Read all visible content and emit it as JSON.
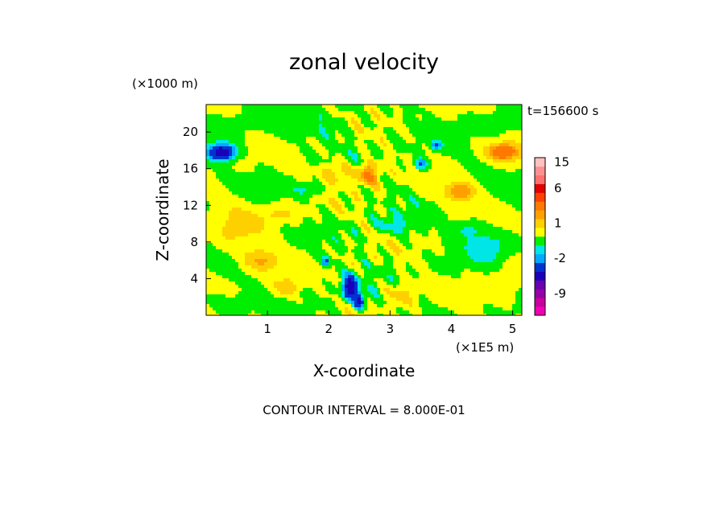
{
  "chart_data": {
    "type": "heatmap",
    "title": "zonal velocity",
    "xlabel": "X-coordinate",
    "ylabel": "Z-coordinate",
    "x_unit": "(×1E5 m)",
    "y_unit": "(×1000 m)",
    "time_label": "t=156600 s",
    "contour_note": "CONTOUR INTERVAL = 8.000E-01",
    "xlim": [
      0,
      5.15
    ],
    "ylim": [
      0,
      23
    ],
    "x_ticks": [
      "1",
      "2",
      "3",
      "4",
      "5"
    ],
    "x_tick_values": [
      1,
      2,
      3,
      4,
      5
    ],
    "y_ticks": [
      "4",
      "8",
      "12",
      "16",
      "20"
    ],
    "y_tick_values": [
      4,
      8,
      12,
      16,
      20
    ],
    "colorbar": {
      "labels": [
        "15",
        "6",
        "1",
        "-2",
        "-9"
      ],
      "label_values": [
        15,
        6,
        1,
        -2,
        -9
      ],
      "bands": [
        {
          "min": -15,
          "max": -12,
          "color": "#f000b4"
        },
        {
          "min": -12,
          "max": -10,
          "color": "#c8009c"
        },
        {
          "min": -10,
          "max": -8,
          "color": "#9600a8"
        },
        {
          "min": -8,
          "max": -6,
          "color": "#6a00b0"
        },
        {
          "min": -6,
          "max": -4,
          "color": "#1a00b8"
        },
        {
          "min": -4,
          "max": -2.4,
          "color": "#0033d0"
        },
        {
          "min": -2.4,
          "max": -1.6,
          "color": "#00aaff"
        },
        {
          "min": -1.6,
          "max": -0.8,
          "color": "#00e5e5"
        },
        {
          "min": -0.8,
          "max": 0,
          "color": "#00ee00"
        },
        {
          "min": 0,
          "max": 0.8,
          "color": "#ffff00"
        },
        {
          "min": 0.8,
          "max": 1.6,
          "color": "#ffd000"
        },
        {
          "min": 1.6,
          "max": 2.4,
          "color": "#ffa000"
        },
        {
          "min": 2.4,
          "max": 4,
          "color": "#ff7800"
        },
        {
          "min": 4,
          "max": 6,
          "color": "#ff4000"
        },
        {
          "min": 6,
          "max": 9,
          "color": "#e00000"
        },
        {
          "min": 9,
          "max": 12,
          "color": "#ff7070"
        },
        {
          "min": 12,
          "max": 15,
          "color": "#ff9090"
        },
        {
          "min": 15,
          "max": 20,
          "color": "#ffc0c0"
        }
      ]
    },
    "field_features": [
      {
        "x": 0.25,
        "z": 17.8,
        "v": -5.5,
        "sx": 0.2,
        "sz": 0.8
      },
      {
        "x": 4.85,
        "z": 17.8,
        "v": 3.5,
        "sx": 0.25,
        "sz": 0.9
      },
      {
        "x": 2.35,
        "z": 3.0,
        "v": -5.5,
        "sx": 0.12,
        "sz": 1.2
      },
      {
        "x": 2.5,
        "z": 1.5,
        "v": -4.5,
        "sx": 0.08,
        "sz": 0.8
      },
      {
        "x": 2.65,
        "z": 15.5,
        "v": 2.8,
        "sx": 0.2,
        "sz": 1.2
      },
      {
        "x": 3.5,
        "z": 16.5,
        "v": -2.8,
        "sx": 0.1,
        "sz": 0.6
      },
      {
        "x": 3.75,
        "z": 18.5,
        "v": -3.0,
        "sx": 0.08,
        "sz": 0.4
      },
      {
        "x": 1.95,
        "z": 5.8,
        "v": -3.0,
        "sx": 0.06,
        "sz": 0.5
      },
      {
        "x": 4.15,
        "z": 13.5,
        "v": 2.5,
        "sx": 0.25,
        "sz": 1.0
      },
      {
        "x": 4.6,
        "z": 7.5,
        "v": -1.4,
        "sx": 0.3,
        "sz": 1.5
      },
      {
        "x": 4.3,
        "z": 9.5,
        "v": -1.2,
        "sx": 0.25,
        "sz": 1.0
      },
      {
        "x": 0.9,
        "z": 6.0,
        "v": 1.8,
        "sx": 0.3,
        "sz": 1.2
      },
      {
        "x": 1.3,
        "z": 3.0,
        "v": 1.5,
        "sx": 0.2,
        "sz": 1.0
      },
      {
        "x": 3.2,
        "z": 2.5,
        "v": 1.2,
        "sx": 0.25,
        "sz": 1.5
      },
      {
        "x": 2.1,
        "z": 15.5,
        "v": 1.5,
        "sx": 0.25,
        "sz": 1.2
      },
      {
        "x": 1.7,
        "z": 13.8,
        "v": -1.2,
        "sx": 0.25,
        "sz": 0.7
      },
      {
        "x": 3.1,
        "z": 9.8,
        "v": -1.1,
        "sx": 0.3,
        "sz": 1.0
      },
      {
        "x": 1.2,
        "z": 11.0,
        "v": 1.0,
        "sx": 0.3,
        "sz": 1.0
      },
      {
        "x": 0.5,
        "z": 9.5,
        "v": 0.8,
        "sx": 0.4,
        "sz": 3.0
      },
      {
        "x": 0.4,
        "z": 21.0,
        "v": -0.7,
        "sx": 0.5,
        "sz": 1.0
      },
      {
        "x": 4.7,
        "z": 21.0,
        "v": -0.7,
        "sx": 0.5,
        "sz": 1.0
      },
      {
        "x": 2.0,
        "z": 20.5,
        "v": -0.6,
        "sx": 0.5,
        "sz": 1.5
      },
      {
        "x": 4.9,
        "z": 3.5,
        "v": 0.7,
        "sx": 0.3,
        "sz": 2.0
      },
      {
        "x": 0.4,
        "z": 1.5,
        "v": -0.6,
        "sx": 0.5,
        "sz": 1.2
      }
    ]
  }
}
